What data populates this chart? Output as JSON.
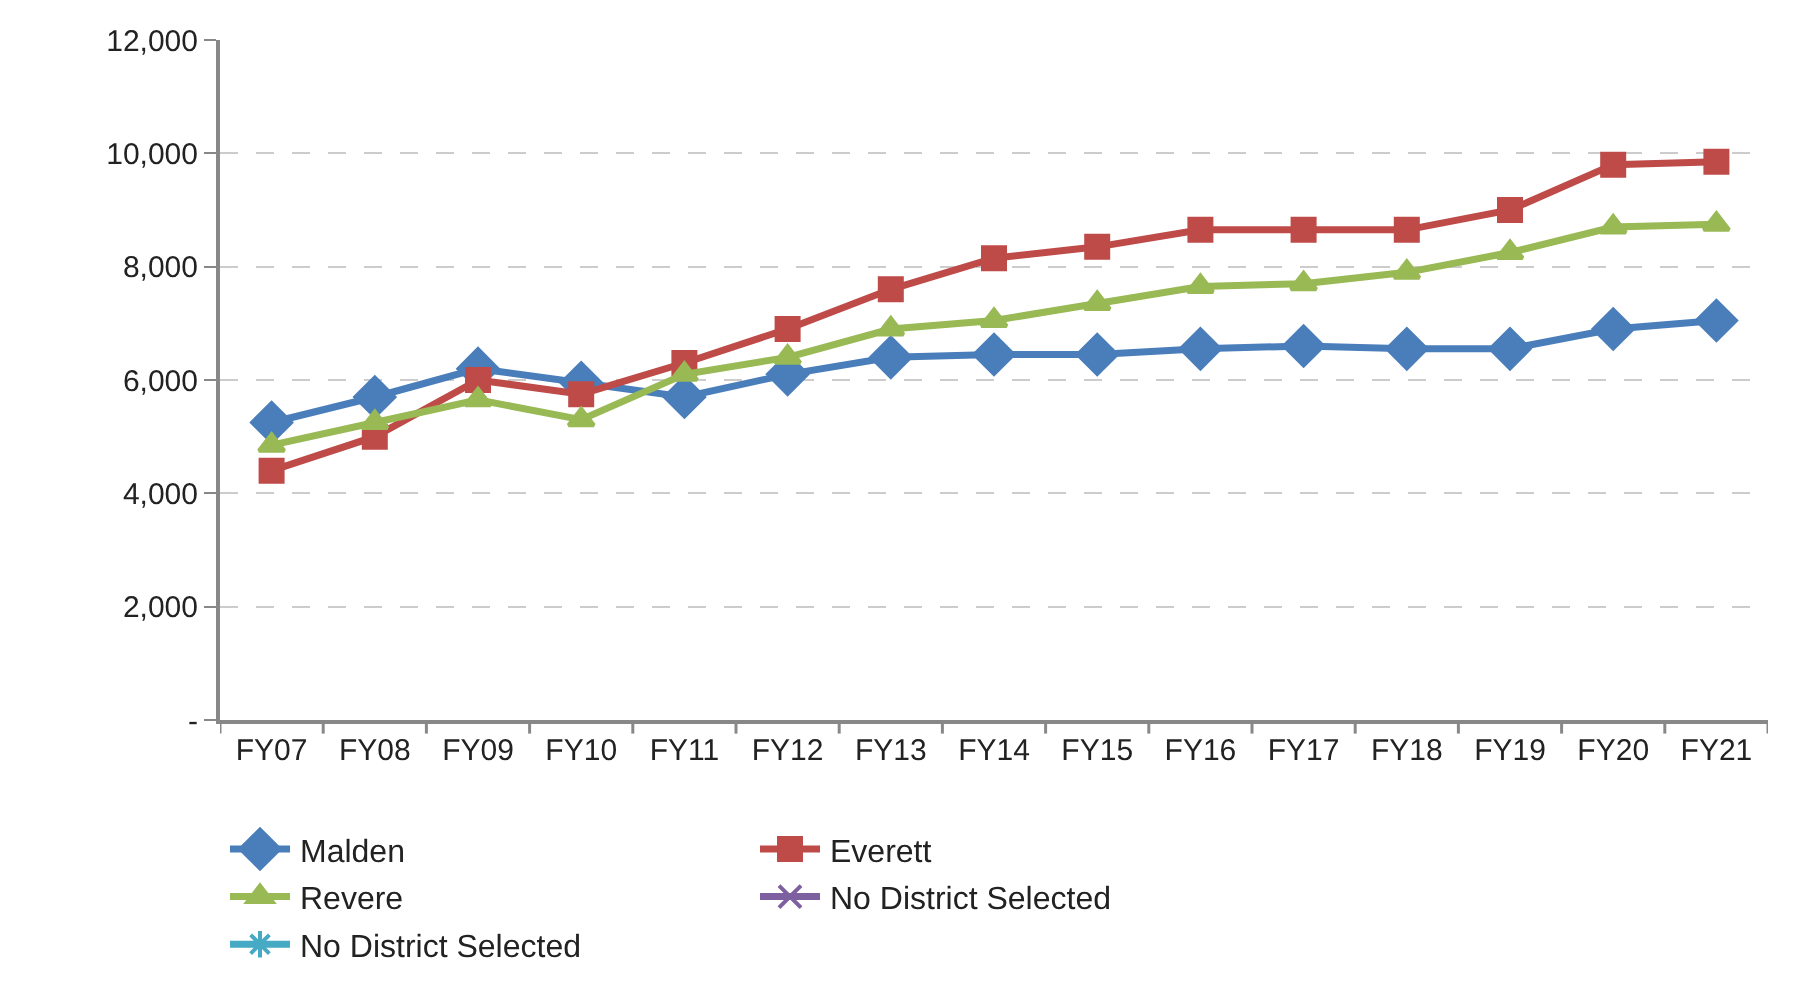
{
  "chart_data": {
    "type": "line",
    "categories": [
      "FY07",
      "FY08",
      "FY09",
      "FY10",
      "FY11",
      "FY12",
      "FY13",
      "FY14",
      "FY15",
      "FY16",
      "FY17",
      "FY18",
      "FY19",
      "FY20",
      "FY21"
    ],
    "series": [
      {
        "name": "Malden",
        "color": "#4a7ebb",
        "marker": "diamond",
        "values": [
          5250,
          5700,
          6200,
          5950,
          5700,
          6100,
          6400,
          6450,
          6450,
          6550,
          6600,
          6550,
          6550,
          6900,
          7050
        ]
      },
      {
        "name": "Everett",
        "color": "#be4b48",
        "marker": "square",
        "values": [
          4400,
          5000,
          6000,
          5750,
          6300,
          6900,
          7600,
          8150,
          8350,
          8650,
          8650,
          8650,
          9000,
          9800,
          9850
        ]
      },
      {
        "name": "Revere",
        "color": "#98b954",
        "marker": "triangle",
        "values": [
          4850,
          5250,
          5650,
          5300,
          6100,
          6400,
          6900,
          7050,
          7350,
          7650,
          7700,
          7900,
          8250,
          8700,
          8750
        ]
      },
      {
        "name": "No District Selected",
        "color": "#7d60a0",
        "marker": "cross",
        "values": [
          null,
          null,
          null,
          null,
          null,
          null,
          null,
          null,
          null,
          null,
          null,
          null,
          null,
          null,
          null
        ]
      },
      {
        "name": "No District Selected",
        "color": "#46aac5",
        "marker": "star",
        "values": [
          null,
          null,
          null,
          null,
          null,
          null,
          null,
          null,
          null,
          null,
          null,
          null,
          null,
          null,
          null
        ]
      }
    ],
    "ylim": [
      0,
      12000
    ],
    "yticks": [
      {
        "value": 0,
        "label": "-"
      },
      {
        "value": 2000,
        "label": "2,000"
      },
      {
        "value": 4000,
        "label": "4,000"
      },
      {
        "value": 6000,
        "label": "6,000"
      },
      {
        "value": 8000,
        "label": "8,000"
      },
      {
        "value": 10000,
        "label": "10,000"
      },
      {
        "value": 12000,
        "label": "12,000"
      }
    ],
    "grid": "y",
    "legend": "bottom",
    "line_style": "solid"
  }
}
